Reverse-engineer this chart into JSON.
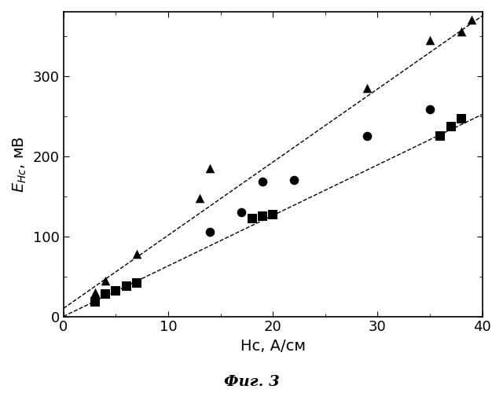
{
  "xlabel": "Hc, А/см",
  "ylabel": "E_{Hc}, мВ",
  "xlim": [
    0,
    40
  ],
  "ylim": [
    0,
    380
  ],
  "xticks": [
    0,
    10,
    20,
    30,
    40
  ],
  "yticks": [
    0,
    100,
    200,
    300
  ],
  "fig_caption": "Фиг. 3",
  "triangles_x": [
    3,
    4,
    7,
    13,
    14,
    29,
    35,
    38,
    39
  ],
  "triangles_y": [
    30,
    45,
    78,
    148,
    185,
    285,
    345,
    355,
    370
  ],
  "circles_x": [
    14,
    17,
    19,
    22,
    29,
    35
  ],
  "circles_y": [
    105,
    130,
    168,
    170,
    225,
    258
  ],
  "squares_x": [
    3,
    4,
    5,
    6,
    7,
    18,
    19,
    20,
    36,
    37,
    38
  ],
  "squares_y": [
    18,
    28,
    32,
    38,
    42,
    122,
    125,
    127,
    225,
    237,
    247
  ],
  "line1_x": [
    0,
    40
  ],
  "line1_y": [
    10,
    375
  ],
  "line2_x": [
    0,
    40
  ],
  "line2_y": [
    0,
    252
  ],
  "marker_color": "#000000",
  "line_color": "#000000",
  "bg_color": "#ffffff",
  "ylabel_fontsize": 14,
  "xlabel_fontsize": 14,
  "tick_labelsize": 13,
  "caption_fontsize": 14,
  "marker_size": 70
}
